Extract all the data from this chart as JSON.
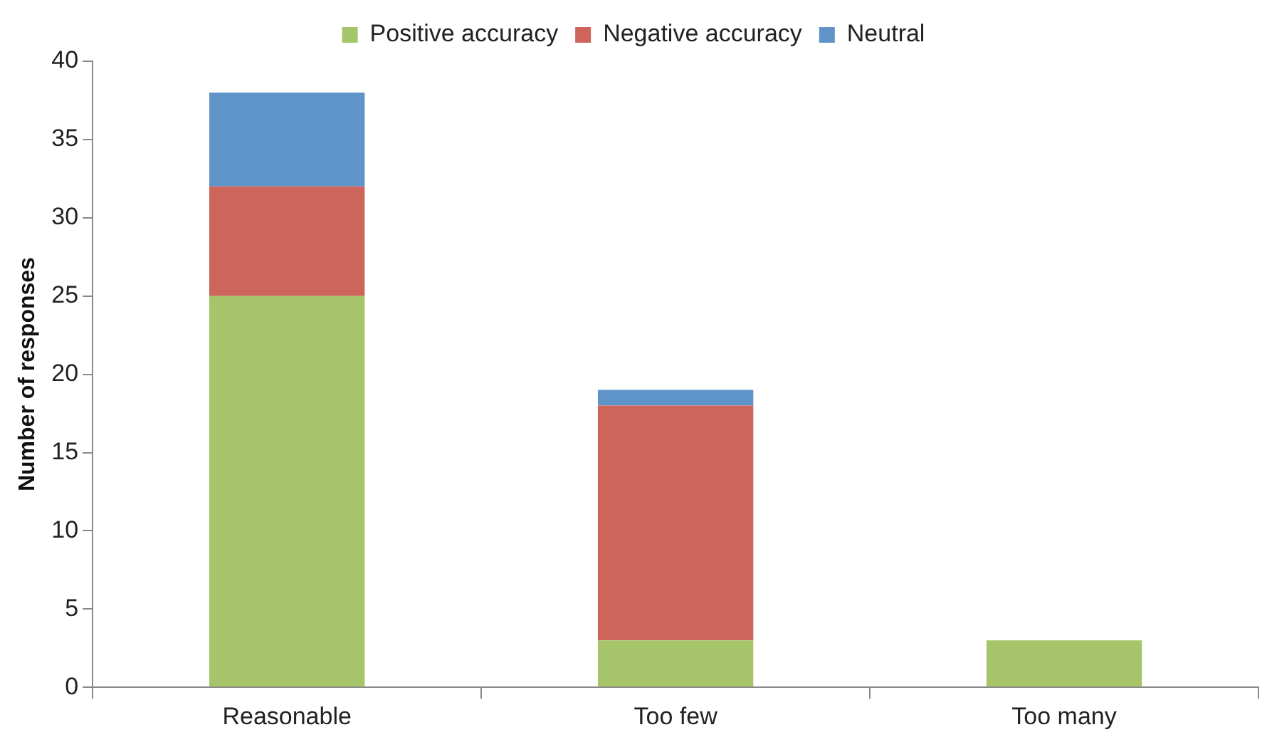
{
  "chart_data": {
    "type": "bar",
    "ylabel": "Number of responses",
    "categories": [
      "Reasonable",
      "Too few",
      "Too many"
    ],
    "series": [
      {
        "name": "Positive accuracy",
        "color": "#a6c46a",
        "values": [
          25,
          3,
          3
        ]
      },
      {
        "name": "Negative accuracy",
        "color": "#cd655b",
        "values": [
          7,
          15,
          0
        ]
      },
      {
        "name": "Neutral",
        "color": "#5f94c9",
        "values": [
          6,
          1,
          0
        ]
      }
    ],
    "stacked": true,
    "ylim": [
      0,
      40
    ],
    "yticks": [
      0,
      5,
      10,
      15,
      20,
      25,
      30,
      35,
      40
    ],
    "grid": false,
    "legend": "top"
  }
}
